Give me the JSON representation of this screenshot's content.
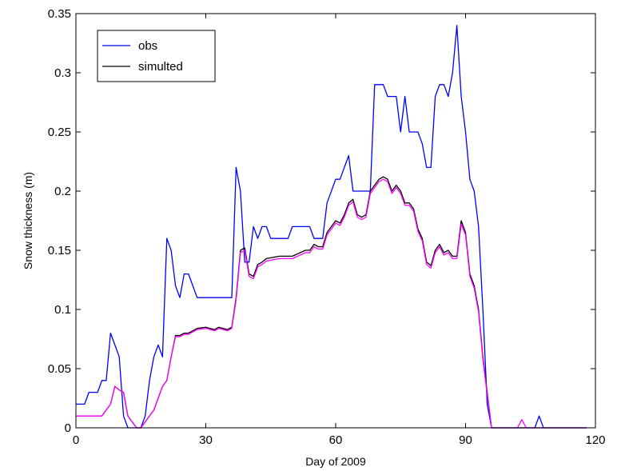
{
  "chart_data": {
    "type": "line",
    "xlabel": "Day of 2009",
    "ylabel": "Snow thickness (m)",
    "xlim": [
      0,
      120
    ],
    "ylim": [
      0,
      0.35
    ],
    "xticks": [
      0,
      30,
      60,
      90,
      120
    ],
    "yticks": [
      0,
      0.05,
      0.1,
      0.15,
      0.2,
      0.25,
      0.3,
      0.35
    ],
    "xtick_labels": [
      "0",
      "30",
      "60",
      "90",
      "120"
    ],
    "ytick_labels": [
      "0",
      "0.05",
      "0.1",
      "0.15",
      "0.2",
      "0.25",
      "0.3",
      "0.35"
    ],
    "grid": false,
    "legend_position": "top-left",
    "series": [
      {
        "name": "obs",
        "color": "#0000ff",
        "x": [
          0,
          2,
          3,
          4,
          5,
          6,
          7,
          8,
          9,
          10,
          11,
          12,
          13,
          14,
          15,
          16,
          17,
          18,
          19,
          20,
          21,
          22,
          23,
          24,
          25,
          26,
          27,
          28,
          29,
          30,
          33,
          36,
          37,
          38,
          39,
          40,
          41,
          42,
          43,
          44,
          45,
          47,
          49,
          50,
          53,
          54,
          55,
          56,
          57,
          58,
          59,
          60,
          61,
          62,
          63,
          64,
          65,
          66,
          67,
          68,
          69,
          70,
          71,
          72,
          73,
          74,
          75,
          76,
          77,
          78,
          79,
          80,
          81,
          82,
          83,
          84,
          85,
          86,
          87,
          88,
          89,
          90,
          91,
          92,
          93,
          94,
          95,
          96,
          106,
          107,
          108,
          118
        ],
        "y": [
          0.02,
          0.02,
          0.03,
          0.03,
          0.03,
          0.04,
          0.04,
          0.08,
          0.07,
          0.06,
          0.01,
          0,
          0,
          0,
          0,
          0.01,
          0.04,
          0.06,
          0.07,
          0.06,
          0.16,
          0.15,
          0.12,
          0.11,
          0.13,
          0.13,
          0.12,
          0.11,
          0.11,
          0.11,
          0.11,
          0.11,
          0.22,
          0.2,
          0.14,
          0.14,
          0.17,
          0.16,
          0.17,
          0.17,
          0.16,
          0.16,
          0.16,
          0.17,
          0.17,
          0.17,
          0.16,
          0.16,
          0.16,
          0.19,
          0.2,
          0.21,
          0.21,
          0.22,
          0.23,
          0.2,
          0.2,
          0.2,
          0.2,
          0.2,
          0.29,
          0.29,
          0.29,
          0.28,
          0.28,
          0.28,
          0.25,
          0.28,
          0.25,
          0.25,
          0.25,
          0.24,
          0.22,
          0.22,
          0.28,
          0.29,
          0.29,
          0.28,
          0.3,
          0.34,
          0.28,
          0.25,
          0.21,
          0.2,
          0.17,
          0.1,
          0.02,
          0,
          0,
          0.01,
          0,
          0
        ]
      },
      {
        "name": "simulted",
        "color": "#000000",
        "x": [
          0,
          6,
          7,
          8,
          9,
          10,
          11,
          12,
          13,
          14,
          15,
          18,
          19,
          20,
          21,
          22,
          23,
          24,
          25,
          26,
          28,
          30,
          32,
          33,
          35,
          36,
          37,
          38,
          39,
          40,
          41,
          42,
          43,
          44,
          47,
          50,
          53,
          54,
          55,
          56,
          57,
          58,
          59,
          60,
          61,
          62,
          63,
          64,
          65,
          66,
          67,
          68,
          69,
          70,
          71,
          72,
          73,
          74,
          75,
          76,
          77,
          78,
          79,
          80,
          81,
          82,
          83,
          84,
          85,
          86,
          87,
          88,
          89,
          90,
          91,
          92,
          93,
          94,
          95,
          96,
          118
        ],
        "y": [
          0.01,
          0.01,
          0.015,
          0.02,
          0.035,
          0.032,
          0.03,
          0.01,
          0.005,
          0,
          0,
          0.015,
          0.025,
          0.035,
          0.04,
          0.06,
          0.078,
          0.078,
          0.08,
          0.08,
          0.084,
          0.085,
          0.083,
          0.085,
          0.083,
          0.085,
          0.11,
          0.15,
          0.152,
          0.13,
          0.128,
          0.138,
          0.14,
          0.143,
          0.145,
          0.145,
          0.15,
          0.15,
          0.155,
          0.153,
          0.153,
          0.165,
          0.17,
          0.175,
          0.173,
          0.18,
          0.19,
          0.193,
          0.18,
          0.178,
          0.18,
          0.2,
          0.205,
          0.21,
          0.212,
          0.21,
          0.2,
          0.205,
          0.2,
          0.19,
          0.19,
          0.185,
          0.168,
          0.16,
          0.14,
          0.137,
          0.15,
          0.155,
          0.148,
          0.15,
          0.145,
          0.145,
          0.175,
          0.165,
          0.13,
          0.12,
          0.1,
          0.06,
          0.03,
          0,
          0
        ]
      },
      {
        "color": "#ff00ff",
        "x": [
          0,
          6,
          7,
          8,
          9,
          10,
          11,
          12,
          13,
          14,
          15,
          18,
          19,
          20,
          21,
          22,
          23,
          24,
          25,
          26,
          28,
          30,
          32,
          33,
          35,
          36,
          37,
          38,
          39,
          40,
          41,
          42,
          43,
          44,
          47,
          50,
          53,
          54,
          55,
          56,
          57,
          58,
          59,
          60,
          61,
          62,
          63,
          64,
          65,
          66,
          67,
          68,
          69,
          70,
          71,
          72,
          73,
          74,
          75,
          76,
          77,
          78,
          79,
          80,
          81,
          82,
          83,
          84,
          85,
          86,
          87,
          88,
          89,
          90,
          91,
          92,
          93,
          94,
          95,
          96,
          102,
          103,
          104,
          118
        ],
        "y": [
          0.01,
          0.01,
          0.015,
          0.02,
          0.035,
          0.032,
          0.03,
          0.01,
          0.005,
          0,
          0,
          0.015,
          0.025,
          0.035,
          0.04,
          0.06,
          0.077,
          0.077,
          0.079,
          0.079,
          0.083,
          0.084,
          0.082,
          0.084,
          0.082,
          0.084,
          0.108,
          0.148,
          0.15,
          0.128,
          0.126,
          0.136,
          0.138,
          0.141,
          0.143,
          0.143,
          0.148,
          0.148,
          0.153,
          0.151,
          0.151,
          0.163,
          0.168,
          0.173,
          0.171,
          0.178,
          0.188,
          0.191,
          0.178,
          0.176,
          0.178,
          0.198,
          0.203,
          0.208,
          0.21,
          0.208,
          0.198,
          0.203,
          0.198,
          0.188,
          0.188,
          0.183,
          0.166,
          0.158,
          0.138,
          0.135,
          0.148,
          0.153,
          0.146,
          0.148,
          0.143,
          0.143,
          0.172,
          0.163,
          0.128,
          0.118,
          0.098,
          0.058,
          0.028,
          0,
          0,
          0.007,
          0,
          0
        ]
      }
    ]
  }
}
